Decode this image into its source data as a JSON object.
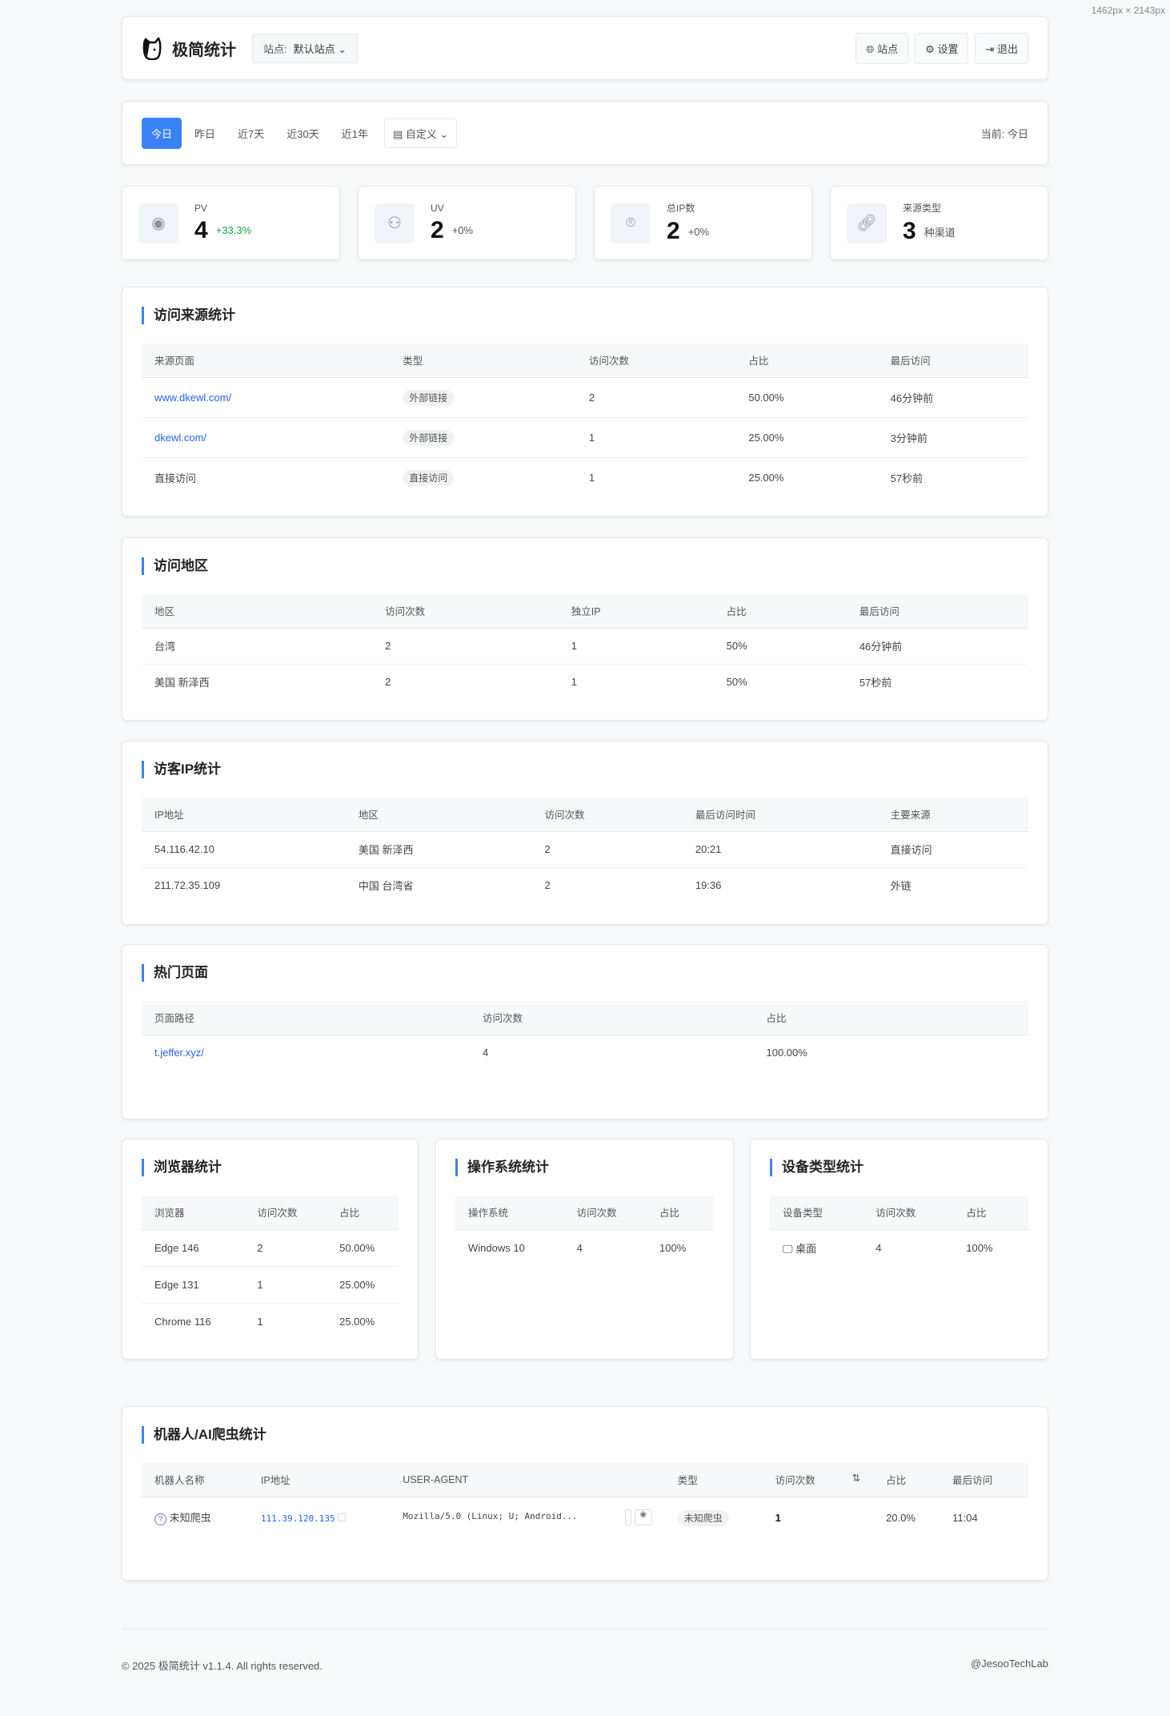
{
  "header": {
    "brand": "极简统计",
    "site_label": "站点:",
    "site_value": "默认站点",
    "buttons": [
      {
        "icon": "globe-icon",
        "label": "站点"
      },
      {
        "icon": "gear-icon",
        "label": "设置"
      },
      {
        "icon": "logout-icon",
        "label": "退出"
      }
    ]
  },
  "filter": {
    "tabs": [
      "今日",
      "昨日",
      "近7天",
      "近30天",
      "近1年"
    ],
    "active": "今日",
    "custom": "自定义",
    "current": "当前: 今日"
  },
  "stats": [
    {
      "icon": "eye-icon",
      "label": "PV",
      "value": "4",
      "sub": "+33.3%"
    },
    {
      "icon": "users-icon",
      "label": "UV",
      "value": "2",
      "sub": "+0%"
    },
    {
      "icon": "location-icon",
      "label": "总IP数",
      "value": "2",
      "sub": "+0%"
    },
    {
      "icon": "link-icon",
      "label": "来源类型",
      "value": "3",
      "sub": "种渠道"
    }
  ],
  "sources": {
    "title": "访问来源统计",
    "columns": [
      "来源页面",
      "类型",
      "访问次数",
      "占比",
      "最后访问"
    ],
    "rows": [
      [
        "www.dkewl.com/",
        "外部链接",
        "2",
        "50.00%",
        "46分钟前"
      ],
      [
        "dkewl.com/",
        "外部链接",
        "1",
        "25.00%",
        "3分钟前"
      ],
      [
        "直接访问",
        "直接访问",
        "1",
        "25.00%",
        "57秒前"
      ]
    ]
  },
  "regions": {
    "title": "访问地区",
    "columns": [
      "地区",
      "访问次数",
      "独立IP",
      "占比",
      "最后访问"
    ],
    "rows": [
      [
        "台湾",
        "2",
        "1",
        "50%",
        "46分钟前"
      ],
      [
        "美国 新泽西",
        "2",
        "1",
        "50%",
        "57秒前"
      ]
    ]
  },
  "ips": {
    "title": "访客IP统计",
    "columns": [
      "IP地址",
      "地区",
      "访问次数",
      "最后访问时间",
      "主要来源"
    ],
    "rows": [
      [
        "54.116.42.10",
        "美国 新泽西",
        "2",
        "20:21",
        "直接访问"
      ],
      [
        "211.72.35.109",
        "中国 台湾省",
        "2",
        "19:36",
        "外链"
      ]
    ]
  },
  "pages": {
    "title": "热门页面",
    "columns": [
      "页面路径",
      "访问次数",
      "占比"
    ],
    "rows": [
      [
        "t.jeffer.xyz/",
        "4",
        "100.00%"
      ]
    ]
  },
  "browsers": {
    "title": "浏览器统计",
    "columns": [
      "浏览器",
      "访问次数",
      "占比"
    ],
    "rows": [
      [
        "Edge 146",
        "2",
        "50.00%"
      ],
      [
        "Edge 131",
        "1",
        "25.00%"
      ],
      [
        "Chrome 116",
        "1",
        "25.00%"
      ]
    ]
  },
  "os": {
    "title": "操作系统统计",
    "columns": [
      "操作系统",
      "访问次数",
      "占比"
    ],
    "rows": [
      [
        "Windows 10",
        "4",
        "100%"
      ]
    ]
  },
  "devices": {
    "title": "设备类型统计",
    "columns": [
      "设备类型",
      "访问次数",
      "占比"
    ],
    "rows": [
      [
        "桌面",
        "4",
        "100%"
      ]
    ]
  },
  "bots": {
    "title": "机器人/AI爬虫统计",
    "columns": [
      "机器人名称",
      "IP地址",
      "USER-AGENT",
      "类型",
      "访问次数",
      "占比",
      "最后访问"
    ],
    "rows": [
      [
        "未知爬虫",
        "111.39.120.135",
        "Mozilla/5.0 (Linux; U; Android...",
        "未知爬虫",
        "1",
        "20.0%",
        "11:04"
      ]
    ]
  },
  "footer": {
    "copyright": "© 2025 极简统计 v1.1.4. All rights reserved.",
    "credit": "@JesooTechLab"
  },
  "dimension_note": "1462px × 2143px",
  "colors": {
    "accent": "#3b82f6",
    "positive": "#16a34a",
    "link": "#2563eb"
  }
}
